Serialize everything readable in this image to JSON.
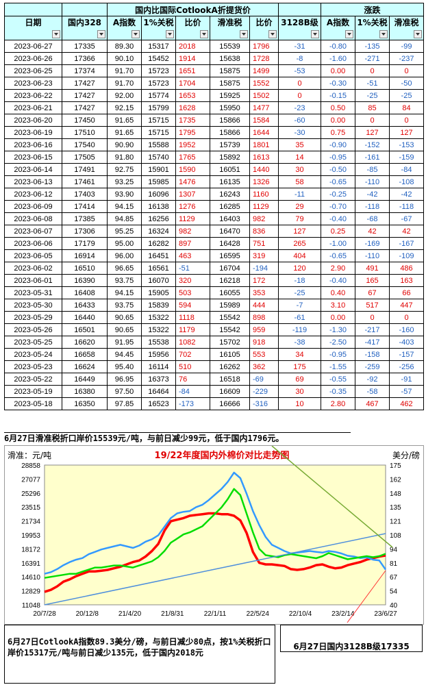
{
  "table": {
    "group_title": "国内比国际CotlookA折提货价",
    "change_title": "涨跌",
    "columns": [
      "日期",
      "国内328",
      "A指数",
      "1%关税",
      "比价",
      "滑准税",
      "比价",
      "3128B级",
      "A指数",
      "1%关税",
      "滑准税"
    ],
    "rows": [
      [
        "2023-06-27",
        "17335",
        "89.30",
        "15317",
        "2018",
        "15539",
        "1796",
        "-31",
        "-0.80",
        "-135",
        "-99"
      ],
      [
        "2023-06-26",
        "17366",
        "90.10",
        "15452",
        "1914",
        "15638",
        "1728",
        "-8",
        "-1.60",
        "-271",
        "-237"
      ],
      [
        "2023-06-25",
        "17374",
        "91.70",
        "15723",
        "1651",
        "15875",
        "1499",
        "-53",
        "0.00",
        "0",
        "0"
      ],
      [
        "2023-06-23",
        "17427",
        "91.70",
        "15723",
        "1704",
        "15875",
        "1552",
        "0",
        "-0.30",
        "-51",
        "-50"
      ],
      [
        "2023-06-22",
        "17427",
        "92.00",
        "15774",
        "1653",
        "15925",
        "1502",
        "0",
        "-0.15",
        "-25",
        "-25"
      ],
      [
        "2023-06-21",
        "17427",
        "92.15",
        "15799",
        "1628",
        "15950",
        "1477",
        "-23",
        "0.50",
        "85",
        "84"
      ],
      [
        "2023-06-20",
        "17450",
        "91.65",
        "15715",
        "1735",
        "15866",
        "1584",
        "-60",
        "0.00",
        "0",
        "0"
      ],
      [
        "2023-06-19",
        "17510",
        "91.65",
        "15715",
        "1795",
        "15866",
        "1644",
        "-30",
        "0.75",
        "127",
        "127"
      ],
      [
        "2023-06-16",
        "17540",
        "90.90",
        "15588",
        "1952",
        "15739",
        "1801",
        "35",
        "-0.90",
        "-152",
        "-153"
      ],
      [
        "2023-06-15",
        "17505",
        "91.80",
        "15740",
        "1765",
        "15892",
        "1613",
        "14",
        "-0.95",
        "-161",
        "-159"
      ],
      [
        "2023-06-14",
        "17491",
        "92.75",
        "15901",
        "1590",
        "16051",
        "1440",
        "30",
        "-0.50",
        "-85",
        "-84"
      ],
      [
        "2023-06-13",
        "17461",
        "93.25",
        "15985",
        "1476",
        "16135",
        "1326",
        "58",
        "-0.65",
        "-110",
        "-108"
      ],
      [
        "2023-06-12",
        "17403",
        "93.90",
        "16096",
        "1307",
        "16243",
        "1160",
        "-11",
        "-0.25",
        "-42",
        "-42"
      ],
      [
        "2023-06-09",
        "17414",
        "94.15",
        "16138",
        "1276",
        "16285",
        "1129",
        "29",
        "-0.70",
        "-118",
        "-118"
      ],
      [
        "2023-06-08",
        "17385",
        "94.85",
        "16256",
        "1129",
        "16403",
        "982",
        "79",
        "-0.40",
        "-68",
        "-67"
      ],
      [
        "2023-06-07",
        "17306",
        "95.25",
        "16324",
        "982",
        "16470",
        "836",
        "127",
        "0.25",
        "42",
        "42"
      ],
      [
        "2023-06-06",
        "17179",
        "95.00",
        "16282",
        "897",
        "16428",
        "751",
        "265",
        "-1.00",
        "-169",
        "-167"
      ],
      [
        "2023-06-05",
        "16914",
        "96.00",
        "16451",
        "463",
        "16595",
        "319",
        "404",
        "-0.65",
        "-110",
        "-109"
      ],
      [
        "2023-06-02",
        "16510",
        "96.65",
        "16561",
        "-51",
        "16704",
        "-194",
        "120",
        "2.90",
        "491",
        "486"
      ],
      [
        "2023-06-01",
        "16390",
        "93.75",
        "16070",
        "320",
        "16218",
        "172",
        "-18",
        "-0.40",
        "165",
        "163"
      ],
      [
        "2023-05-31",
        "16408",
        "94.15",
        "15905",
        "503",
        "16055",
        "353",
        "-25",
        "0.40",
        "67",
        "66"
      ],
      [
        "2023-05-30",
        "16433",
        "93.75",
        "15839",
        "594",
        "15989",
        "444",
        "-7",
        "3.10",
        "517",
        "447"
      ],
      [
        "2023-05-29",
        "16440",
        "90.65",
        "15322",
        "1118",
        "15542",
        "898",
        "-61",
        "0.00",
        "0",
        "0"
      ],
      [
        "2023-05-26",
        "16501",
        "90.65",
        "15322",
        "1179",
        "15542",
        "959",
        "-119",
        "-1.30",
        "-217",
        "-160"
      ],
      [
        "2023-05-25",
        "16620",
        "91.95",
        "15538",
        "1082",
        "15702",
        "918",
        "-38",
        "-2.50",
        "-417",
        "-403"
      ],
      [
        "2023-05-24",
        "16658",
        "94.45",
        "15956",
        "702",
        "16105",
        "553",
        "34",
        "-0.95",
        "-158",
        "-157"
      ],
      [
        "2023-05-23",
        "16624",
        "95.40",
        "16114",
        "510",
        "16262",
        "362",
        "175",
        "-1.55",
        "-259",
        "-256"
      ],
      [
        "2023-05-22",
        "16449",
        "96.95",
        "16373",
        "76",
        "16518",
        "-69",
        "69",
        "-0.55",
        "-92",
        "-91"
      ],
      [
        "2023-05-19",
        "16380",
        "97.50",
        "16464",
        "-84",
        "16609",
        "-229",
        "30",
        "-0.35",
        "-58",
        "-57"
      ],
      [
        "2023-05-18",
        "16350",
        "97.85",
        "16523",
        "-173",
        "16666",
        "-316",
        "10",
        "2.80",
        "467",
        "462"
      ]
    ]
  },
  "note_top": "6月27日滑准税折口岸价15539元/吨，与前日减少99元，低于国内1796元。",
  "chart_data": {
    "type": "line",
    "title": "19/22年度国内外棉价对比走势图",
    "left_axis_label": "滑准：元/吨",
    "right_axis_label": "美分/磅",
    "left_ticks": [
      "28858",
      "27077",
      "25296",
      "23515",
      "21734",
      "19953",
      "18172",
      "16391",
      "14610",
      "12829",
      "11048"
    ],
    "right_ticks": [
      "175",
      "162",
      "148",
      "135",
      "121",
      "108",
      "94",
      "81",
      "67",
      "54",
      "40"
    ],
    "x_ticks": [
      "20/7/28",
      "20/12/8",
      "21/4/20",
      "21/8/31",
      "22/1/11",
      "22/5/24",
      "22/10/4",
      "23/2/14",
      "23/6/27"
    ],
    "ylim_left": [
      11048,
      28858
    ],
    "ylim_right": [
      40,
      175
    ],
    "colors": {
      "domestic": "#ff0000",
      "slide_tax": "#3399ff",
      "a_index": "#00dd00",
      "bg": "#ffffcc"
    },
    "series": [
      {
        "key": "domestic",
        "axis": "left",
        "values": [
          12700,
          12950,
          13400,
          14000,
          14300,
          14700,
          15000,
          15300,
          15300,
          15400,
          15500,
          15700,
          15900,
          16200,
          16500,
          16700,
          17200,
          17900,
          18800,
          20500,
          21700,
          21900,
          22100,
          22400,
          22500,
          22600,
          22700,
          22700,
          22600,
          22600,
          22400,
          21800,
          20200,
          17800,
          16400,
          16200,
          16200,
          16100,
          16000,
          15600,
          15500,
          15600,
          15800,
          16100,
          16200,
          15900,
          15700,
          15800,
          16100,
          16300,
          16500,
          16800,
          17000,
          17200,
          17335
        ]
      },
      {
        "key": "slide_tax",
        "axis": "left",
        "values": [
          15000,
          15200,
          15600,
          16100,
          16500,
          16800,
          17000,
          17500,
          17800,
          18100,
          18300,
          18500,
          18700,
          18500,
          18300,
          18600,
          19100,
          19400,
          19900,
          21000,
          22100,
          22700,
          22900,
          23000,
          23500,
          23800,
          24400,
          25100,
          25800,
          26700,
          27900,
          27200,
          25200,
          23000,
          21200,
          19700,
          18700,
          18300,
          17900,
          17600,
          17700,
          17800,
          17900,
          17800,
          17700,
          17900,
          17800,
          17600,
          17300,
          17200,
          17000,
          17100,
          16800,
          16700,
          15539
        ]
      },
      {
        "key": "a_index",
        "axis": "right",
        "values": [
          66,
          67,
          68,
          69,
          70,
          70,
          72,
          74,
          76,
          76,
          77,
          78,
          78,
          77,
          76,
          78,
          80,
          82,
          86,
          92,
          100,
          104,
          108,
          110,
          113,
          116,
          122,
          128,
          134,
          142,
          152,
          146,
          128,
          110,
          94,
          88,
          87,
          86,
          88,
          89,
          88,
          87,
          86,
          85,
          87,
          90,
          88,
          86,
          84,
          85,
          86,
          87,
          86,
          87,
          89.3
        ]
      }
    ]
  },
  "bottom_left": "6月27日CotlookA指数89.3美分/磅，与前日减少80点，按1%关税折口岸价15317元/吨与前日减少135元，低于国内2018元",
  "bottom_right": "6月27日国内3128B级17335"
}
